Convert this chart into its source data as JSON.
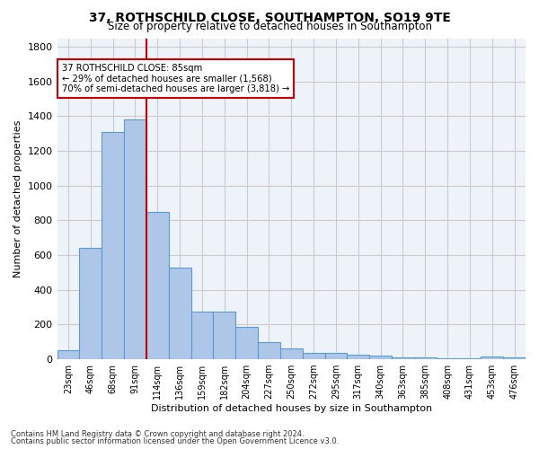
{
  "title": "37, ROTHSCHILD CLOSE, SOUTHAMPTON, SO19 9TE",
  "subtitle": "Size of property relative to detached houses in Southampton",
  "xlabel": "Distribution of detached houses by size in Southampton",
  "ylabel": "Number of detached properties",
  "footnote1": "Contains HM Land Registry data © Crown copyright and database right 2024.",
  "footnote2": "Contains public sector information licensed under the Open Government Licence v3.0.",
  "bar_color": "#aec6e8",
  "bar_edge_color": "#5b9bd5",
  "grid_color": "#cccccc",
  "bg_color": "#eef2f9",
  "annotation_box_color": "#cc0000",
  "vline_color": "#cc0000",
  "categories": [
    "23sqm",
    "46sqm",
    "68sqm",
    "91sqm",
    "114sqm",
    "136sqm",
    "159sqm",
    "182sqm",
    "204sqm",
    "227sqm",
    "250sqm",
    "272sqm",
    "295sqm",
    "317sqm",
    "340sqm",
    "363sqm",
    "385sqm",
    "408sqm",
    "431sqm",
    "453sqm",
    "476sqm"
  ],
  "values": [
    50,
    640,
    1310,
    1380,
    848,
    530,
    275,
    275,
    185,
    100,
    60,
    38,
    38,
    28,
    20,
    10,
    10,
    7,
    7,
    15,
    10
  ],
  "property_label": "37 ROTHSCHILD CLOSE: 85sqm",
  "pct_smaller": "29% of detached houses are smaller (1,568)",
  "pct_larger": "70% of semi-detached houses are larger (3,818)",
  "vline_x_idx": 3,
  "ylim": [
    0,
    1850
  ],
  "yticks": [
    0,
    200,
    400,
    600,
    800,
    1000,
    1200,
    1400,
    1600,
    1800
  ]
}
